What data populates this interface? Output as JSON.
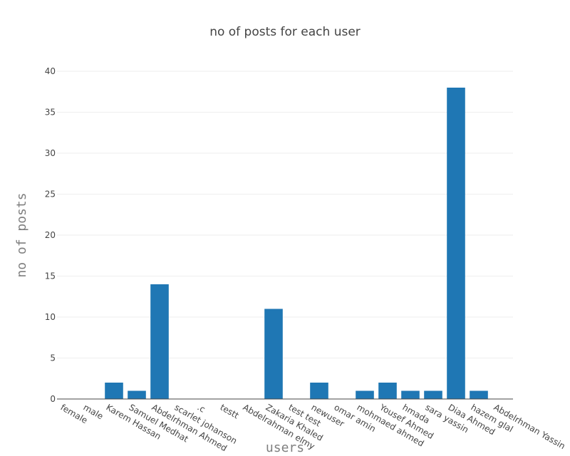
{
  "chart_data": {
    "type": "bar",
    "title": "no of posts for each user",
    "xlabel": "users",
    "ylabel": "no of posts",
    "categories": [
      "female",
      "male",
      "Karem Hassan",
      "Samuel Medhat",
      "Abdelrhman Ahmed",
      "scarlet johanson",
      ".c",
      "testt",
      "Abdelrahman elmy",
      "Zakaria Khaled",
      "test test",
      "newuser",
      "omar amin",
      "mohmaed ahmed",
      "Yousef Ahmed",
      "hmada",
      "sara yassin",
      "Diaa Ahmed",
      "hazem glal",
      "Abdelrhman Yassin"
    ],
    "values": [
      0,
      0,
      2,
      1,
      14,
      0,
      0,
      0,
      0,
      11,
      0,
      2,
      0,
      1,
      2,
      1,
      1,
      38,
      1,
      0
    ],
    "ylim": [
      0,
      40
    ],
    "yticks": [
      0,
      5,
      10,
      15,
      20,
      25,
      30,
      35,
      40
    ],
    "grid": true,
    "bar_color": "#1f77b4"
  }
}
